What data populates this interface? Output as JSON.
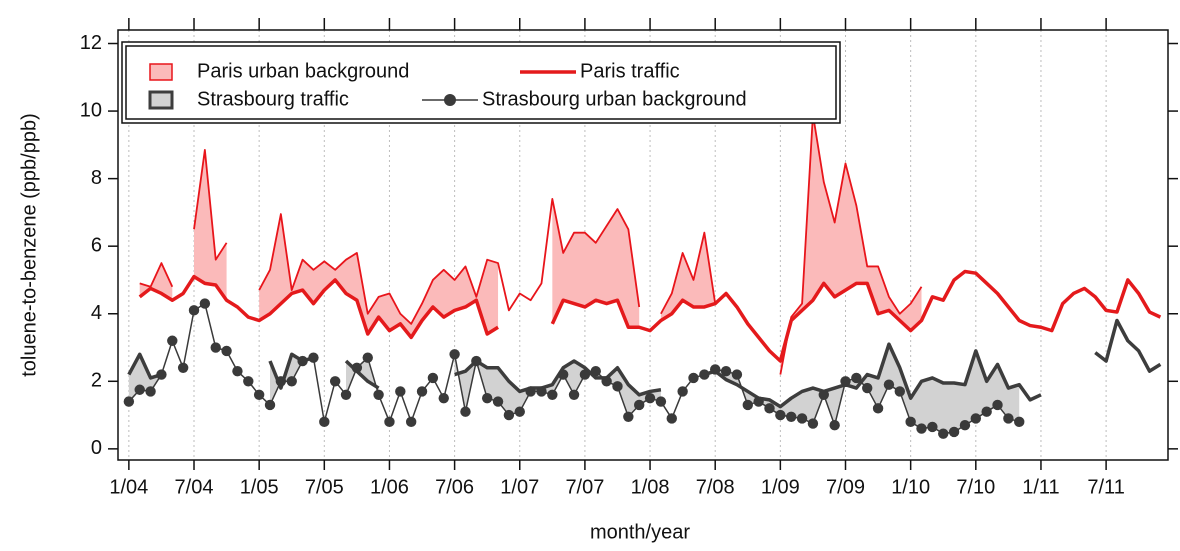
{
  "chart_data": {
    "type": "line",
    "ylabel": "toluene-to-benzene (ppb/ppb)",
    "xlabel": "month/year",
    "xlim": [
      -1,
      95.7
    ],
    "ylim": [
      -0.33,
      12.4
    ],
    "xticks": [
      {
        "value": 0,
        "label": "1/04"
      },
      {
        "value": 6,
        "label": "7/04"
      },
      {
        "value": 12,
        "label": "1/05"
      },
      {
        "value": 18,
        "label": "7/05"
      },
      {
        "value": 24,
        "label": "1/06"
      },
      {
        "value": 30,
        "label": "7/06"
      },
      {
        "value": 36,
        "label": "1/07"
      },
      {
        "value": 42,
        "label": "7/07"
      },
      {
        "value": 48,
        "label": "1/08"
      },
      {
        "value": 54,
        "label": "7/08"
      },
      {
        "value": 60,
        "label": "1/09"
      },
      {
        "value": 66,
        "label": "7/09"
      },
      {
        "value": 72,
        "label": "1/10"
      },
      {
        "value": 78,
        "label": "7/10"
      },
      {
        "value": 84,
        "label": "1/11"
      },
      {
        "value": 90,
        "label": "7/11"
      }
    ],
    "yticks": [
      0,
      2,
      4,
      6,
      8,
      10,
      12
    ],
    "xgrid": true,
    "x": [
      0,
      1,
      2,
      3,
      4,
      5,
      6,
      7,
      8,
      9,
      10,
      11,
      12,
      13,
      14,
      15,
      16,
      17,
      18,
      19,
      20,
      21,
      22,
      23,
      24,
      25,
      26,
      27,
      28,
      29,
      30,
      31,
      32,
      33,
      34,
      35,
      36,
      37,
      38,
      39,
      40,
      41,
      42,
      43,
      44,
      45,
      46,
      47,
      48,
      49,
      50,
      51,
      52,
      53,
      54,
      55,
      56,
      57,
      58,
      59,
      60,
      61,
      62,
      63,
      64,
      65,
      66,
      67,
      68,
      69,
      70,
      71,
      72,
      73,
      74,
      75,
      76,
      77,
      78,
      79,
      80,
      81,
      82,
      83,
      84,
      85,
      86,
      87,
      88,
      89,
      90,
      91,
      92,
      93,
      94,
      95
    ],
    "series": [
      {
        "name": "Paris urban background",
        "color": "#e8151b",
        "fill": "#fbbaba",
        "fill_to": 1,
        "style": "band",
        "width": 1.8,
        "values": [
          null,
          4.9,
          4.8,
          5.5,
          4.8,
          null,
          6.5,
          8.85,
          5.6,
          6.1,
          null,
          null,
          4.7,
          5.3,
          6.95,
          4.7,
          5.6,
          5.3,
          5.55,
          5.3,
          5.6,
          5.8,
          4.0,
          4.5,
          4.6,
          4.0,
          3.7,
          4.3,
          5.0,
          5.3,
          5.0,
          5.4,
          4.5,
          5.6,
          5.5,
          4.1,
          4.6,
          4.4,
          4.9,
          7.4,
          5.8,
          6.4,
          6.4,
          6.1,
          6.6,
          7.1,
          6.5,
          4.2,
          null,
          4.0,
          4.6,
          5.8,
          5.0,
          6.4,
          4.3,
          null,
          null,
          null,
          null,
          null,
          2.2,
          3.9,
          4.3,
          9.9,
          7.9,
          6.7,
          8.45,
          7.2,
          5.4,
          5.4,
          4.5,
          4.0,
          4.3,
          4.8,
          null,
          null,
          null,
          null,
          null,
          null,
          null,
          null,
          null,
          null,
          null,
          null,
          null,
          null,
          null,
          null,
          null,
          null,
          null,
          null,
          null,
          null
        ]
      },
      {
        "name": "Paris traffic",
        "color": "#e41a1c",
        "style": "line",
        "width": 3.5,
        "values": [
          null,
          4.5,
          4.75,
          4.6,
          4.4,
          4.6,
          5.1,
          4.9,
          4.85,
          4.4,
          4.2,
          3.9,
          3.8,
          4.0,
          4.3,
          4.6,
          4.7,
          4.3,
          4.7,
          5.0,
          4.6,
          4.4,
          3.4,
          3.9,
          3.5,
          3.7,
          3.3,
          3.8,
          4.2,
          3.9,
          4.1,
          4.2,
          4.4,
          3.4,
          3.6,
          null,
          null,
          null,
          null,
          3.7,
          4.4,
          4.3,
          4.2,
          4.4,
          4.3,
          4.4,
          3.6,
          3.6,
          3.5,
          3.8,
          4.0,
          4.4,
          4.2,
          4.2,
          4.3,
          4.6,
          4.2,
          3.7,
          3.3,
          2.9,
          2.6,
          3.8,
          4.1,
          4.4,
          4.9,
          4.5,
          4.7,
          4.9,
          4.9,
          4.0,
          4.1,
          3.8,
          3.5,
          3.8,
          4.5,
          4.4,
          5.0,
          5.25,
          5.2,
          4.9,
          4.6,
          4.2,
          3.8,
          3.65,
          3.6,
          3.5,
          4.3,
          4.6,
          4.75,
          4.5,
          4.1,
          4.05,
          5.0,
          4.6,
          4.05,
          3.9
        ]
      },
      {
        "name": "Strasbourg traffic",
        "color": "#3d3d3d",
        "fill": "#d2d2d2",
        "fill_to": 3,
        "style": "band",
        "width": 3.5,
        "values": [
          2.2,
          2.8,
          2.1,
          2.2,
          null,
          null,
          null,
          null,
          null,
          null,
          null,
          null,
          null,
          2.6,
          1.8,
          2.8,
          2.6,
          2.7,
          null,
          null,
          2.6,
          2.3,
          2.0,
          1.8,
          null,
          null,
          null,
          null,
          null,
          null,
          2.2,
          2.3,
          2.6,
          2.4,
          2.4,
          2.0,
          1.7,
          1.8,
          1.8,
          1.9,
          2.4,
          2.6,
          2.4,
          2.1,
          2.1,
          2.4,
          1.9,
          1.6,
          1.7,
          1.75,
          null,
          null,
          null,
          2.2,
          2.3,
          2.05,
          1.9,
          1.7,
          1.5,
          1.45,
          1.25,
          1.5,
          1.7,
          1.8,
          1.7,
          1.8,
          1.9,
          1.8,
          2.2,
          2.1,
          3.1,
          2.4,
          1.5,
          2.0,
          2.1,
          1.95,
          1.95,
          1.9,
          2.9,
          2.0,
          2.5,
          1.8,
          1.9,
          1.45,
          1.6,
          null,
          null,
          null,
          null,
          2.85,
          2.6,
          3.8,
          3.2,
          2.9,
          2.3,
          2.5
        ]
      },
      {
        "name": "Strasbourg urban background",
        "color": "#3a3a3a",
        "style": "markers",
        "width": 1.5,
        "values": [
          1.4,
          1.75,
          1.7,
          2.2,
          3.2,
          2.4,
          4.1,
          4.3,
          3.0,
          2.9,
          2.3,
          2.0,
          1.6,
          1.3,
          2.0,
          2.0,
          2.6,
          2.7,
          0.8,
          2.0,
          1.6,
          2.4,
          2.7,
          1.6,
          0.8,
          1.7,
          0.8,
          1.7,
          2.1,
          1.5,
          2.8,
          1.1,
          2.6,
          1.5,
          1.4,
          1.0,
          1.1,
          1.7,
          1.7,
          1.6,
          2.2,
          1.6,
          2.2,
          2.3,
          2.0,
          1.85,
          0.95,
          1.3,
          1.5,
          1.4,
          0.9,
          1.7,
          2.1,
          2.2,
          2.35,
          2.3,
          2.2,
          1.3,
          1.4,
          1.2,
          1.0,
          0.95,
          0.9,
          0.75,
          1.6,
          0.7,
          2.0,
          2.1,
          1.8,
          1.2,
          1.9,
          1.7,
          0.8,
          0.6,
          0.65,
          0.45,
          0.5,
          0.7,
          0.9,
          1.1,
          1.3,
          0.9,
          0.8,
          null,
          null,
          null,
          null,
          null,
          null,
          null,
          null,
          null,
          null,
          null,
          null,
          null
        ]
      }
    ]
  }
}
